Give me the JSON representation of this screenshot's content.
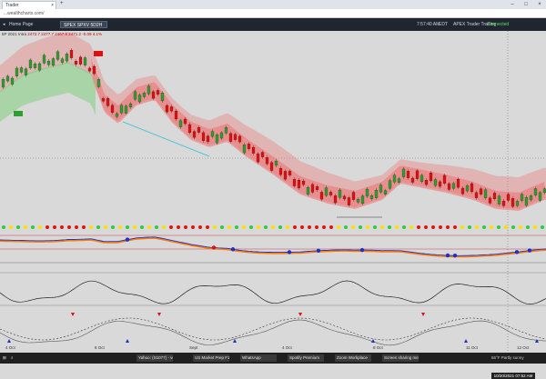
{
  "browser": {
    "tab_title": "Trader",
    "tab_close": "×",
    "new_tab": "+",
    "url": "...wealthcharts.com/",
    "controls": [
      "–",
      "□",
      "×"
    ]
  },
  "toolbar": {
    "back": "◂",
    "home": "Home Page",
    "active_tab": "SPEX SPXV 5D2H",
    "time": "7:57:40 AM",
    "clock_state": "EDT",
    "feed": "APEX Trader Trading",
    "status": "Connected"
  },
  "chart": {
    "symbol_prefix": "5P 2021",
    "symbol_sep": "Intra",
    "legend_values": "2472.7  2477.7  2467.6  2471.2  -0.09  4.1%",
    "x_labels": [
      "4 Oct",
      "8 Oct",
      "Sept",
      "4 Oct",
      "8 Oct",
      "11 Oct",
      "12 Oct"
    ],
    "date_badge": "10/20/2021 07:52 AM",
    "bull_color": "#2e9e2e",
    "bear_color": "#e01010",
    "cloud_bull": "#7fd07f",
    "cloud_bear": "#f07070"
  },
  "taskbar": {
    "search_icon": "search-icon",
    "apps": [
      "Yahoo: (S1077) - vo...",
      "US Market Prep F1...",
      "WhatsApp",
      "Spotify Premium",
      "Zoom Workplace",
      "Screen sharing mee..."
    ],
    "weather": "66°F  Partly sunny"
  }
}
